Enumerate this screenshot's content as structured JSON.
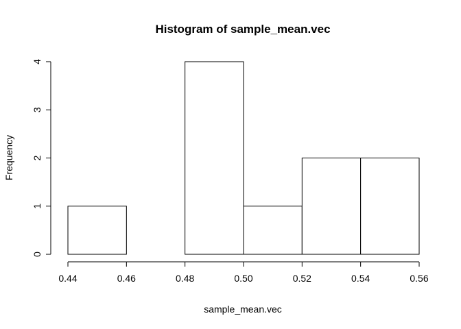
{
  "chart_data": {
    "type": "bar",
    "title": "Histogram of sample_mean.vec",
    "xlabel": "sample_mean.vec",
    "ylabel": "Frequency",
    "bins": [
      {
        "start": 0.44,
        "end": 0.46,
        "count": 1
      },
      {
        "start": 0.46,
        "end": 0.48,
        "count": 0
      },
      {
        "start": 0.48,
        "end": 0.5,
        "count": 4
      },
      {
        "start": 0.5,
        "end": 0.52,
        "count": 1
      },
      {
        "start": 0.52,
        "end": 0.54,
        "count": 2
      },
      {
        "start": 0.54,
        "end": 0.56,
        "count": 2
      }
    ],
    "xlim": [
      0.44,
      0.56
    ],
    "ylim": [
      0,
      4
    ],
    "x_ticks": [
      "0.44",
      "0.46",
      "0.48",
      "0.50",
      "0.52",
      "0.54",
      "0.56"
    ],
    "y_ticks": [
      "0",
      "1",
      "2",
      "3",
      "4"
    ],
    "grid": false,
    "colors": {
      "bar_fill": "#ffffff",
      "bar_stroke": "#000000"
    }
  }
}
